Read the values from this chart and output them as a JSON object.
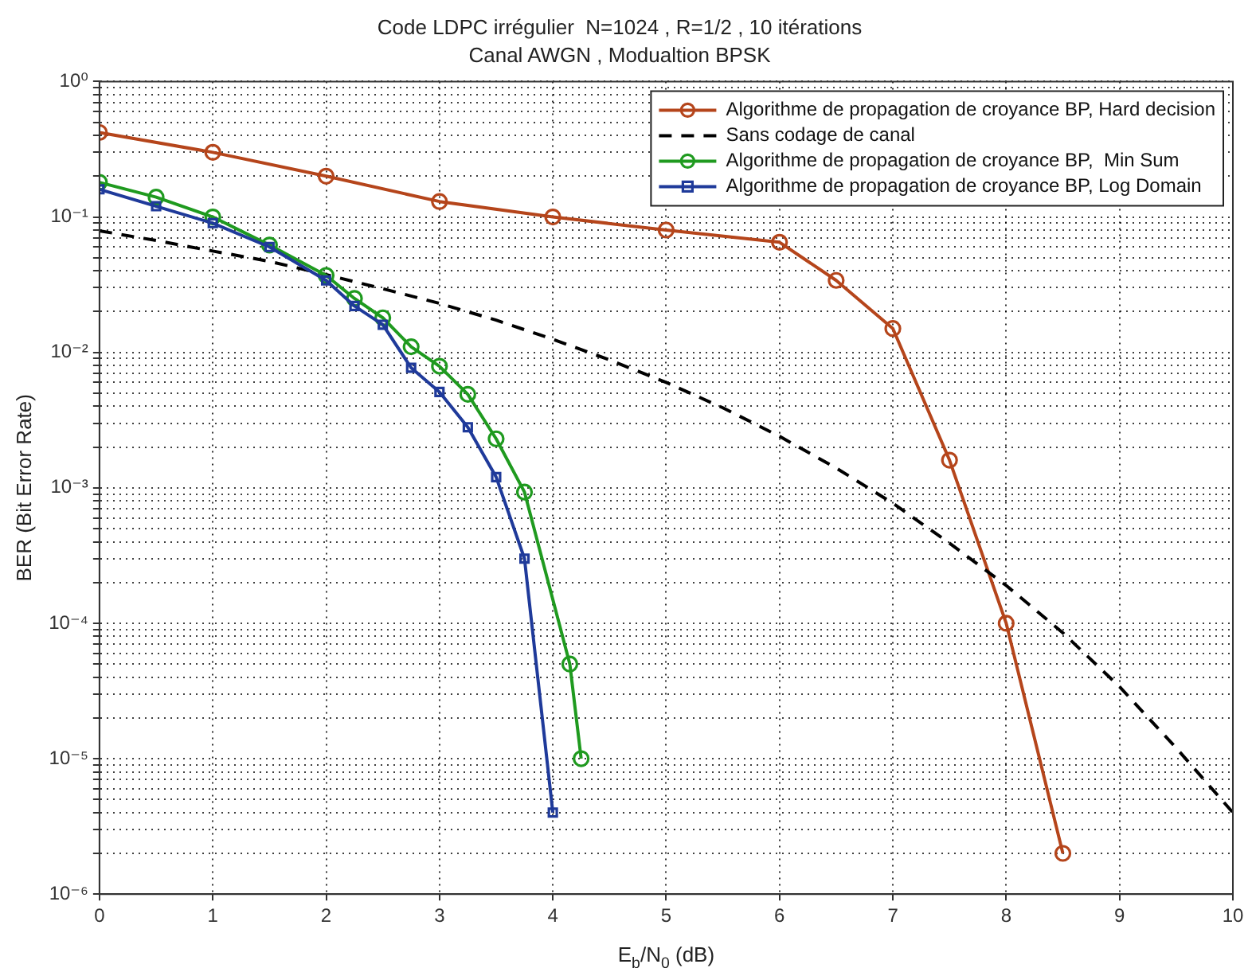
{
  "chart_data": {
    "type": "line",
    "title": "Code LDPC irrégulier  N=1024 , R=1/2 , 10 itérations",
    "subtitle": "Canal AWGN , Modualtion BPSK",
    "xlabel": "E$_{b}$/N$_{0}$ (dB)",
    "ylabel": "BER (Bit Error Rate)",
    "log": "y",
    "grid": true,
    "legend": "top right",
    "xlim": [
      0,
      10
    ],
    "xticks": [
      0,
      1,
      2,
      3,
      4,
      5,
      6,
      7,
      8,
      9,
      10
    ],
    "ylim": [
      1e-06,
      1
    ],
    "yticks": [
      {
        "value": 1e-06,
        "label": "10⁻⁶"
      },
      {
        "value": 2e-06,
        "label": null
      },
      {
        "value": 3e-06,
        "label": null
      },
      {
        "value": 4e-06,
        "label": null
      },
      {
        "value": 5e-06,
        "label": null
      },
      {
        "value": 6e-06,
        "label": null
      },
      {
        "value": 7e-06,
        "label": null
      },
      {
        "value": 8e-06,
        "label": null
      },
      {
        "value": 9e-06,
        "label": null
      },
      {
        "value": 1e-05,
        "label": "10⁻⁵"
      },
      {
        "value": 2e-05,
        "label": null
      },
      {
        "value": 3e-05,
        "label": null
      },
      {
        "value": 4e-05,
        "label": null
      },
      {
        "value": 5e-05,
        "label": null
      },
      {
        "value": 6e-05,
        "label": null
      },
      {
        "value": 7e-05,
        "label": null
      },
      {
        "value": 8e-05,
        "label": null
      },
      {
        "value": 9e-05,
        "label": null
      },
      {
        "value": 0.0001,
        "label": "10⁻⁴"
      },
      {
        "value": 0.0002,
        "label": null
      },
      {
        "value": 0.0003,
        "label": null
      },
      {
        "value": 0.0004,
        "label": null
      },
      {
        "value": 0.0005,
        "label": null
      },
      {
        "value": 0.0006,
        "label": null
      },
      {
        "value": 0.0007,
        "label": null
      },
      {
        "value": 0.0008,
        "label": null
      },
      {
        "value": 0.0009,
        "label": null
      },
      {
        "value": 0.001,
        "label": "10⁻³"
      },
      {
        "value": 0.002,
        "label": null
      },
      {
        "value": 0.003,
        "label": null
      },
      {
        "value": 0.004,
        "label": null
      },
      {
        "value": 0.005,
        "label": null
      },
      {
        "value": 0.006,
        "label": null
      },
      {
        "value": 0.007,
        "label": null
      },
      {
        "value": 0.008,
        "label": null
      },
      {
        "value": 0.009,
        "label": null
      },
      {
        "value": 0.01,
        "label": "10⁻²"
      },
      {
        "value": 0.02,
        "label": null
      },
      {
        "value": 0.03,
        "label": null
      },
      {
        "value": 0.04,
        "label": null
      },
      {
        "value": 0.05,
        "label": null
      },
      {
        "value": 0.06,
        "label": null
      },
      {
        "value": 0.07,
        "label": null
      },
      {
        "value": 0.08,
        "label": null
      },
      {
        "value": 0.09,
        "label": null
      },
      {
        "value": 0.1,
        "label": "10⁻¹"
      },
      {
        "value": 0.2,
        "label": null
      },
      {
        "value": 0.3,
        "label": null
      },
      {
        "value": 0.4,
        "label": null
      },
      {
        "value": 0.5,
        "label": null
      },
      {
        "value": 0.6,
        "label": null
      },
      {
        "value": 0.7,
        "label": null
      },
      {
        "value": 0.8,
        "label": null
      },
      {
        "value": 0.9,
        "label": null
      },
      {
        "value": 1,
        "label": "10⁰"
      }
    ],
    "series": [
      {
        "name": "Algorithme de propagation de croyance BP, Hard decision",
        "color": "#b5451b",
        "marker": "circle",
        "line_style": "solid",
        "x": [
          0,
          1,
          2,
          3,
          4,
          5,
          6,
          6.5,
          7,
          7.5,
          8,
          8.5
        ],
        "values": [
          0.42,
          0.3,
          0.2,
          0.13,
          0.1,
          0.08,
          0.065,
          0.034,
          0.015,
          0.0016,
          0.0001,
          2e-06
        ]
      },
      {
        "name": "Sans codage de canal",
        "color": "#000000",
        "marker": "none",
        "line_style": "dashed",
        "x": [
          0,
          0.5,
          1,
          1.5,
          2,
          2.5,
          3,
          3.5,
          4,
          4.5,
          5,
          5.5,
          6,
          6.5,
          7,
          7.5,
          8,
          8.5,
          9,
          9.5,
          10
        ],
        "values": [
          0.079,
          0.067,
          0.056,
          0.047,
          0.0375,
          0.0295,
          0.023,
          0.0173,
          0.0125,
          0.0088,
          0.006,
          0.0039,
          0.0024,
          0.0014,
          0.00077,
          0.00039,
          0.00019,
          8.5e-05,
          3.4e-05,
          1.2e-05,
          4e-06
        ]
      },
      {
        "name": "Algorithme de propagation de croyance BP,  Min Sum",
        "color": "#1f9a1f",
        "marker": "circle",
        "line_style": "solid",
        "x": [
          0,
          0.5,
          1,
          1.5,
          2,
          2.25,
          2.5,
          2.75,
          3,
          3.25,
          3.5,
          3.75,
          4.15,
          4.25
        ],
        "values": [
          0.18,
          0.14,
          0.1,
          0.062,
          0.037,
          0.025,
          0.018,
          0.011,
          0.0079,
          0.0049,
          0.0023,
          0.00093,
          5e-05,
          1e-05
        ]
      },
      {
        "name": "Algorithme de propagation de croyance BP, Log Domain",
        "color": "#1f3a9a",
        "marker": "square",
        "line_style": "solid",
        "x": [
          0,
          0.5,
          1,
          1.5,
          2,
          2.25,
          2.5,
          2.75,
          3,
          3.25,
          3.5,
          3.75,
          4
        ],
        "values": [
          0.16,
          0.12,
          0.09,
          0.06,
          0.034,
          0.022,
          0.016,
          0.0077,
          0.0051,
          0.0028,
          0.0012,
          0.0003,
          4e-06
        ]
      }
    ]
  }
}
